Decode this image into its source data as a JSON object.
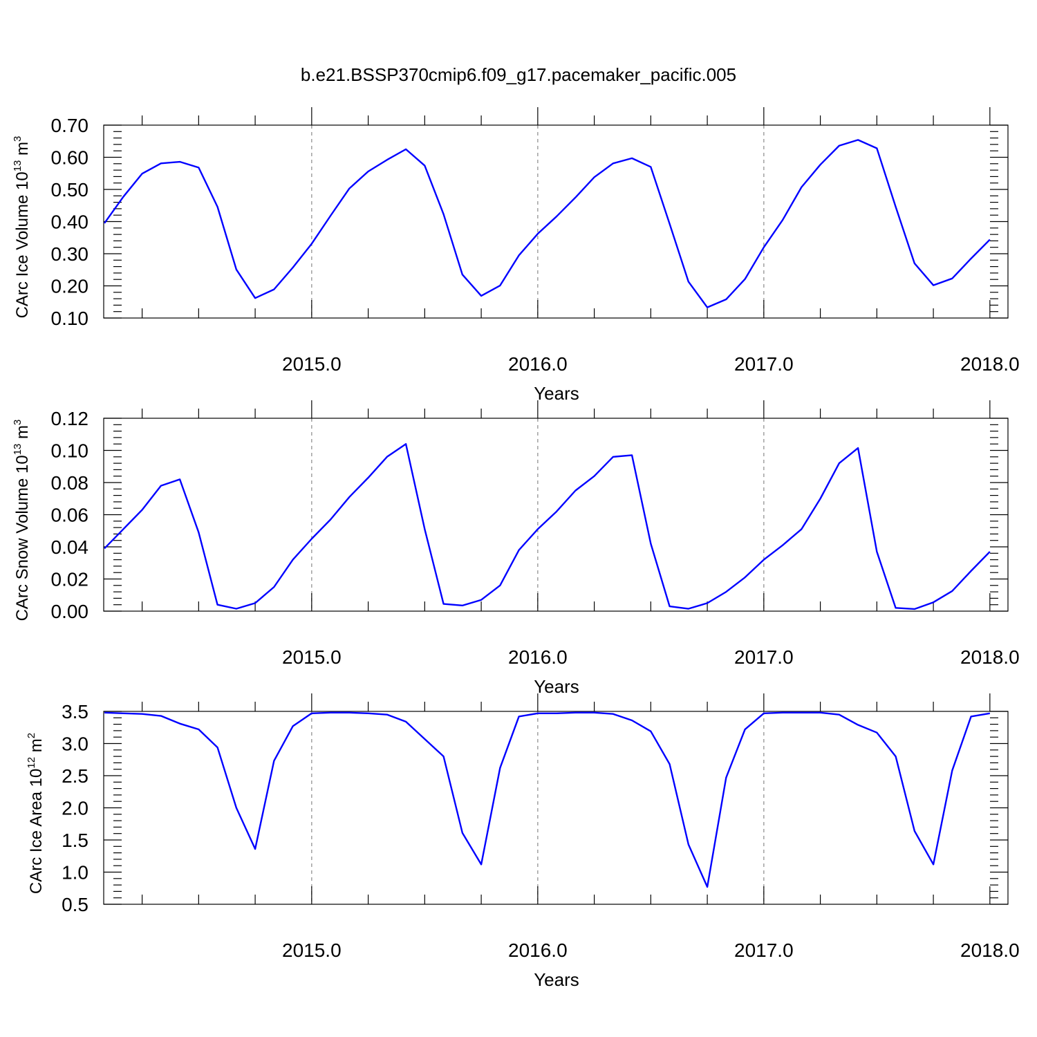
{
  "figure": {
    "title": "b.e21.BSSP370cmip6.f09_g17.pacemaker_pacific.005"
  },
  "chart_data": [
    {
      "type": "line",
      "ylabel": "CArc Ice Volume 10",
      "ylabel_exp": "13",
      "ylabel_unit": " m",
      "ylabel_unit_exp": "3",
      "xlabel": "Years",
      "xlim": [
        2014.08,
        2018.08
      ],
      "ylim": [
        0.1,
        0.7
      ],
      "yticks": [
        "0.10",
        "0.20",
        "0.30",
        "0.40",
        "0.50",
        "0.60",
        "0.70"
      ],
      "xticks": [
        "2015.0",
        "2016.0",
        "2017.0",
        "2018.0"
      ],
      "grid": "x-dashed",
      "color": "#0000ff",
      "x": [
        2014.0833,
        2014.1667,
        2014.25,
        2014.3333,
        2014.4167,
        2014.5,
        2014.5833,
        2014.6667,
        2014.75,
        2014.8333,
        2014.9167,
        2015.0,
        2015.0833,
        2015.1667,
        2015.25,
        2015.3333,
        2015.4167,
        2015.5,
        2015.5833,
        2015.6667,
        2015.75,
        2015.8333,
        2015.9167,
        2016.0,
        2016.0833,
        2016.1667,
        2016.25,
        2016.3333,
        2016.4167,
        2016.5,
        2016.5833,
        2016.6667,
        2016.75,
        2016.8333,
        2016.9167,
        2017.0,
        2017.0833,
        2017.1667,
        2017.25,
        2017.3333,
        2017.4167,
        2017.5,
        2017.5833,
        2017.6667,
        2017.75,
        2017.8333,
        2017.9167,
        2018.0
      ],
      "values": [
        0.395,
        0.477,
        0.549,
        0.581,
        0.586,
        0.568,
        0.446,
        0.251,
        0.162,
        0.189,
        0.257,
        0.331,
        0.418,
        0.503,
        0.556,
        0.592,
        0.625,
        0.574,
        0.423,
        0.235,
        0.169,
        0.201,
        0.295,
        0.362,
        0.416,
        0.475,
        0.538,
        0.581,
        0.597,
        0.57,
        0.393,
        0.213,
        0.133,
        0.158,
        0.221,
        0.32,
        0.405,
        0.507,
        0.577,
        0.636,
        0.654,
        0.628,
        0.446,
        0.27,
        0.202,
        0.223,
        0.285,
        0.344
      ]
    },
    {
      "type": "line",
      "ylabel": "CArc Snow Volume 10",
      "ylabel_exp": "13",
      "ylabel_unit": " m",
      "ylabel_unit_exp": "3",
      "xlabel": "Years",
      "xlim": [
        2014.08,
        2018.08
      ],
      "ylim": [
        0.0,
        0.12
      ],
      "yticks": [
        "0.00",
        "0.02",
        "0.04",
        "0.06",
        "0.08",
        "0.10",
        "0.12"
      ],
      "xticks": [
        "2015.0",
        "2016.0",
        "2017.0",
        "2018.0"
      ],
      "grid": "x-dashed",
      "color": "#0000ff",
      "x": [
        2014.0833,
        2014.1667,
        2014.25,
        2014.3333,
        2014.4167,
        2014.5,
        2014.5833,
        2014.6667,
        2014.75,
        2014.8333,
        2014.9167,
        2015.0,
        2015.0833,
        2015.1667,
        2015.25,
        2015.3333,
        2015.4167,
        2015.5,
        2015.5833,
        2015.6667,
        2015.75,
        2015.8333,
        2015.9167,
        2016.0,
        2016.0833,
        2016.1667,
        2016.25,
        2016.3333,
        2016.4167,
        2016.5,
        2016.5833,
        2016.6667,
        2016.75,
        2016.8333,
        2016.9167,
        2017.0,
        2017.0833,
        2017.1667,
        2017.25,
        2017.3333,
        2017.4167,
        2017.5,
        2017.5833,
        2017.6667,
        2017.75,
        2017.8333,
        2017.9167,
        2018.0
      ],
      "values": [
        0.039,
        0.051,
        0.063,
        0.078,
        0.082,
        0.049,
        0.004,
        0.0015,
        0.005,
        0.015,
        0.032,
        0.045,
        0.057,
        0.071,
        0.083,
        0.096,
        0.104,
        0.051,
        0.0045,
        0.0035,
        0.007,
        0.016,
        0.038,
        0.051,
        0.062,
        0.075,
        0.084,
        0.096,
        0.097,
        0.042,
        0.003,
        0.0015,
        0.005,
        0.012,
        0.021,
        0.032,
        0.041,
        0.051,
        0.07,
        0.092,
        0.1015,
        0.037,
        0.002,
        0.0013,
        0.0055,
        0.0125,
        0.025,
        0.037
      ]
    },
    {
      "type": "line",
      "ylabel": "CArc Ice Area 10",
      "ylabel_exp": "12",
      "ylabel_unit": " m",
      "ylabel_unit_exp": "2",
      "xlabel": "Years",
      "xlim": [
        2014.08,
        2018.08
      ],
      "ylim": [
        0.5,
        3.5
      ],
      "yticks": [
        "0.5",
        "1.0",
        "1.5",
        "2.0",
        "2.5",
        "3.0",
        "3.5"
      ],
      "xticks": [
        "2015.0",
        "2016.0",
        "2017.0",
        "2018.0"
      ],
      "grid": "x-dashed",
      "color": "#0000ff",
      "x": [
        2014.0833,
        2014.1667,
        2014.25,
        2014.3333,
        2014.4167,
        2014.5,
        2014.5833,
        2014.6667,
        2014.75,
        2014.8333,
        2014.9167,
        2015.0,
        2015.0833,
        2015.1667,
        2015.25,
        2015.3333,
        2015.4167,
        2015.5,
        2015.5833,
        2015.6667,
        2015.75,
        2015.8333,
        2015.9167,
        2016.0,
        2016.0833,
        2016.1667,
        2016.25,
        2016.3333,
        2016.4167,
        2016.5,
        2016.5833,
        2016.6667,
        2016.75,
        2016.8333,
        2016.9167,
        2017.0,
        2017.0833,
        2017.1667,
        2017.25,
        2017.3333,
        2017.4167,
        2017.5,
        2017.5833,
        2017.6667,
        2017.75,
        2017.8333,
        2017.9167,
        2018.0
      ],
      "values": [
        3.48,
        3.47,
        3.46,
        3.43,
        3.31,
        3.22,
        2.94,
        2.0,
        1.36,
        2.73,
        3.27,
        3.47,
        3.48,
        3.48,
        3.47,
        3.45,
        3.34,
        3.07,
        2.8,
        1.61,
        1.12,
        2.62,
        3.42,
        3.47,
        3.47,
        3.48,
        3.48,
        3.46,
        3.36,
        3.19,
        2.68,
        1.43,
        0.77,
        2.47,
        3.22,
        3.47,
        3.48,
        3.48,
        3.48,
        3.45,
        3.29,
        3.17,
        2.8,
        1.64,
        1.12,
        2.58,
        3.42,
        3.47
      ]
    }
  ]
}
